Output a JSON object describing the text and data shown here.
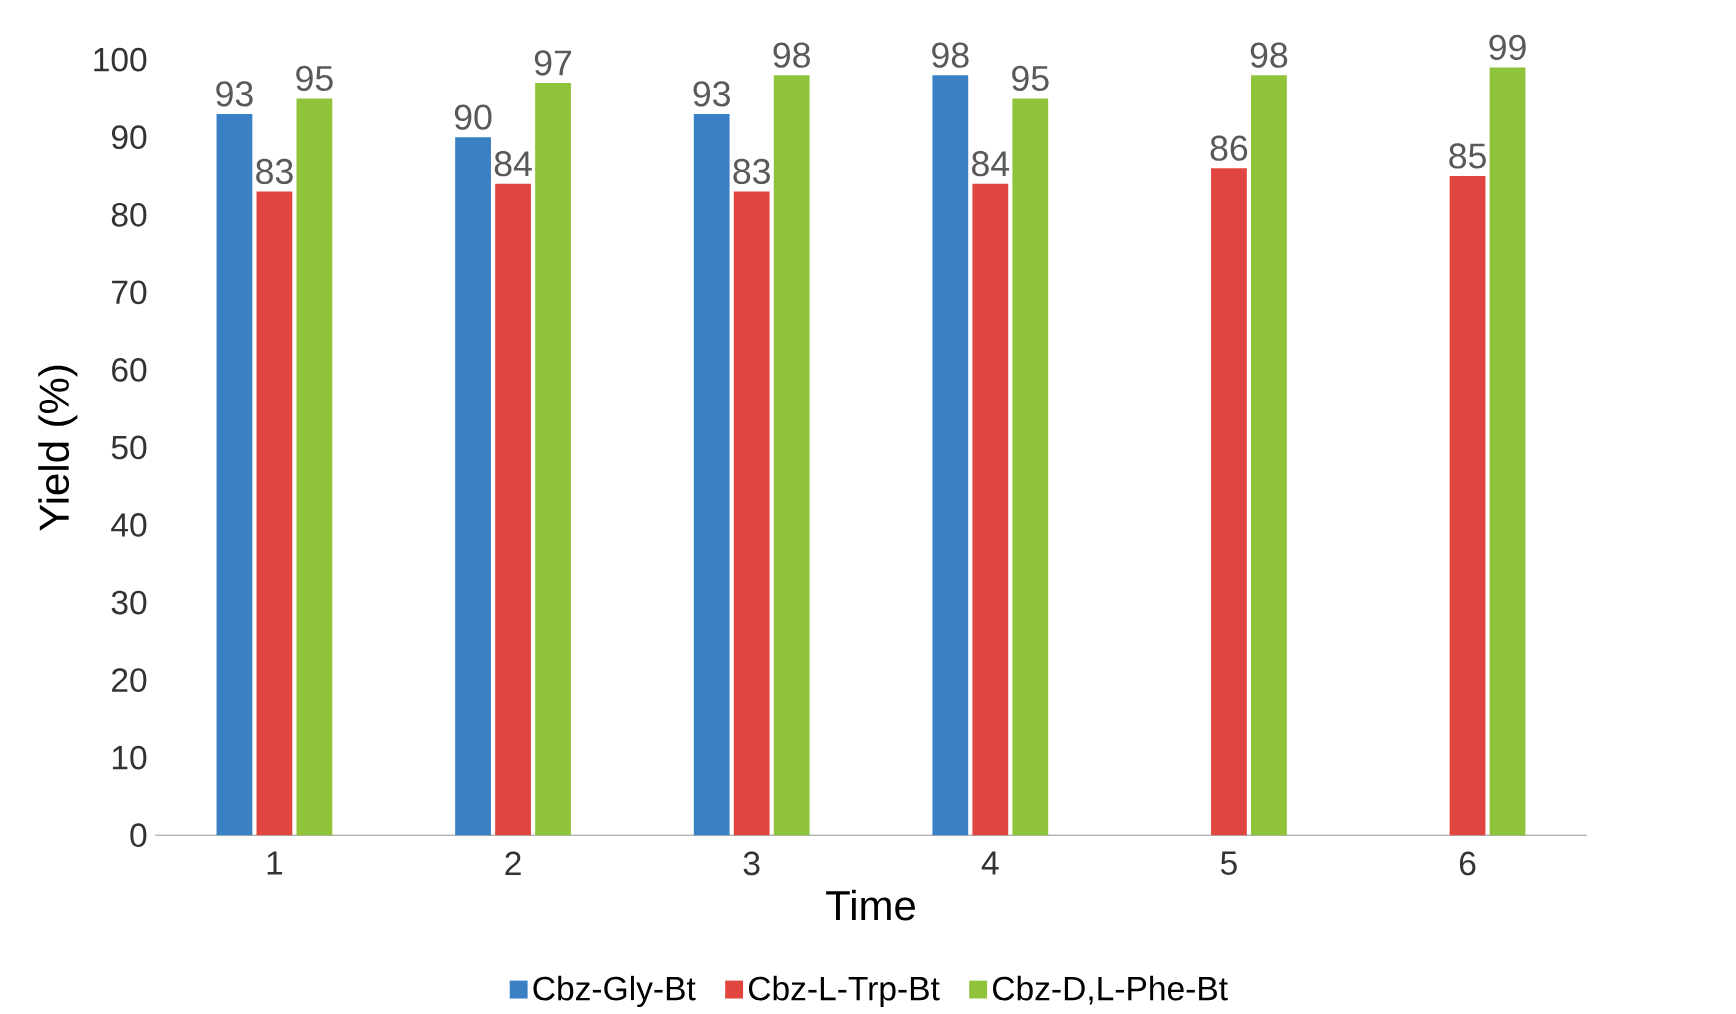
{
  "chart_data": {
    "type": "bar",
    "xlabel": "Time",
    "ylabel": "Yield (%)",
    "categories": [
      "1",
      "2",
      "3",
      "4",
      "5",
      "6"
    ],
    "series": [
      {
        "name": "Cbz-Gly-Bt",
        "color": "#3a80c4",
        "values": [
          93,
          90,
          93,
          98,
          null,
          null
        ]
      },
      {
        "name": "Cbz-L-Trp-Bt",
        "color": "#e0463f",
        "values": [
          83,
          84,
          83,
          84,
          86,
          85
        ]
      },
      {
        "name": "Cbz-D,L-Phe-Bt",
        "color": "#8fc43a",
        "values": [
          95,
          97,
          98,
          95,
          98,
          99
        ]
      }
    ],
    "ylim": [
      0,
      100
    ],
    "yticks": [
      0,
      10,
      20,
      30,
      40,
      50,
      60,
      70,
      80,
      90,
      100
    ],
    "data_labels": true,
    "legend": "bottom",
    "grid": false
  }
}
